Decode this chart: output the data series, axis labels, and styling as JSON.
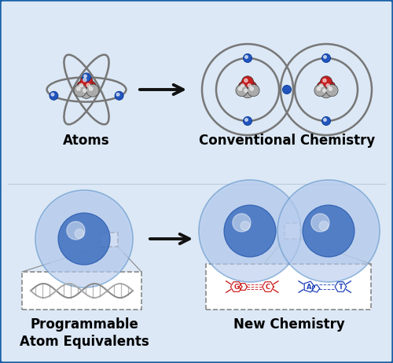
{
  "bg_color": "#dce8f5",
  "border_color": "#1a5fa8",
  "title_atoms": "Atoms",
  "title_conv": "Conventional Chemistry",
  "title_pae": "Programmable\nAtom Equivalents",
  "title_new": "New Chemistry",
  "arrow_color": "#111111",
  "orbit_color": "#888888",
  "nucleus_red": "#c42020",
  "nucleus_gray": "#aaaaaa",
  "electron_color": "#2255bb",
  "sna_outer_light": "#c5d8f0",
  "sna_outer_mid": "#a8c4e8",
  "sna_inner_dark": "#4070c0",
  "sna_inner_light": "#7aaae0",
  "dna_color": "#888888",
  "gc_color": "#cc2222",
  "at_color": "#2244bb",
  "label_fontsize": 12,
  "small_fontsize": 6
}
